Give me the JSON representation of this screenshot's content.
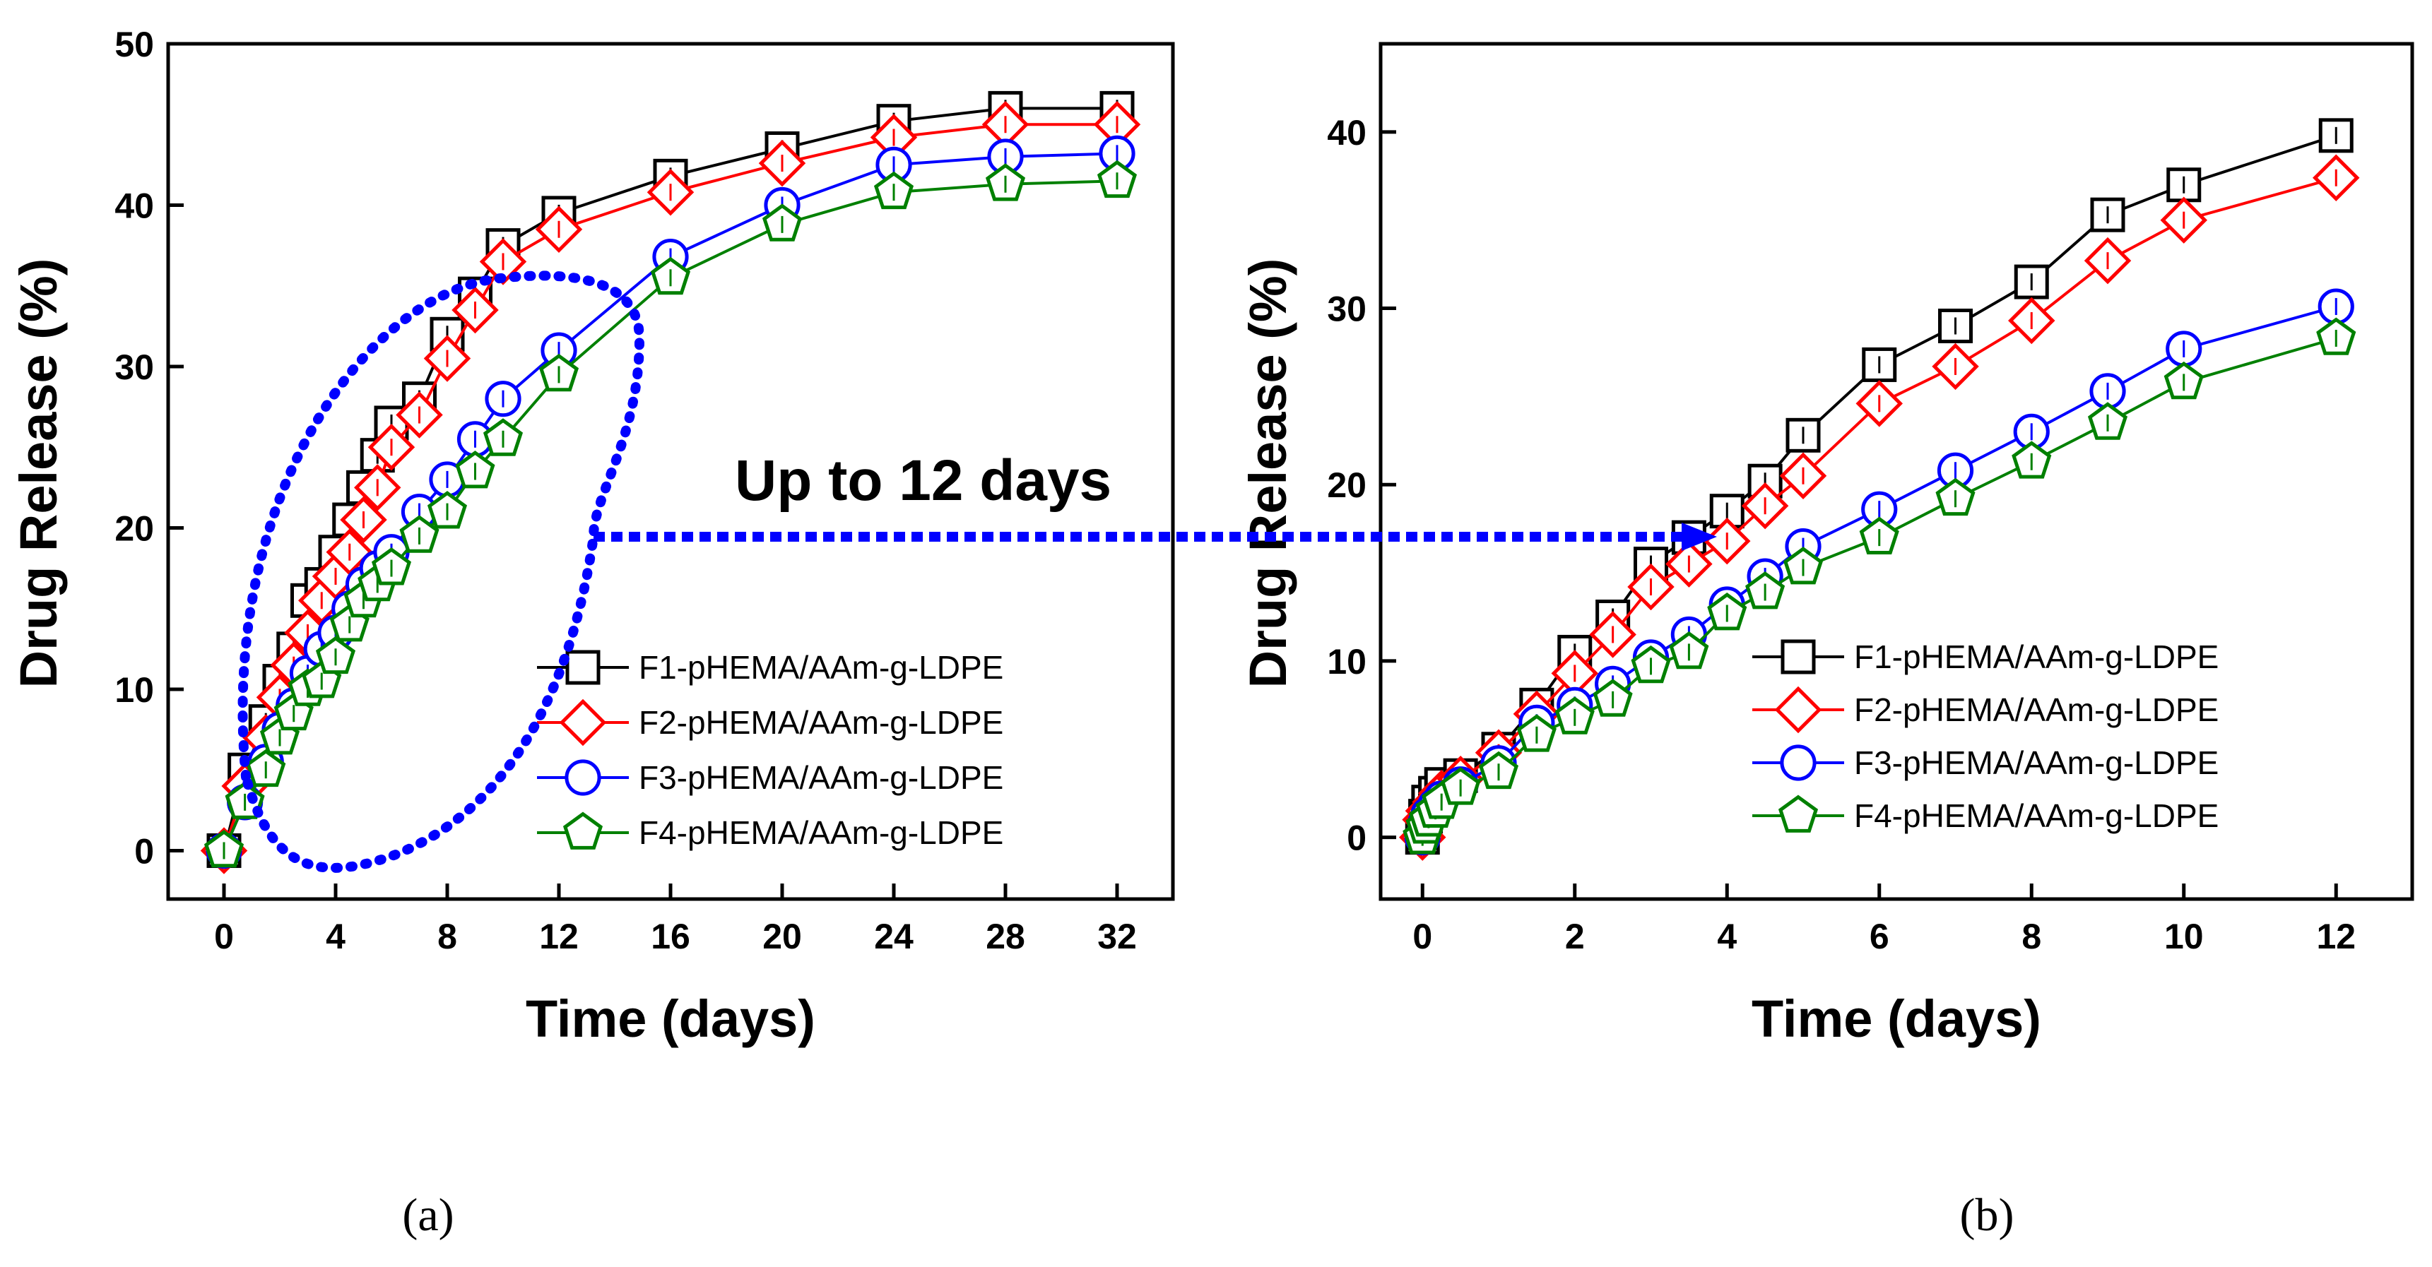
{
  "chart_data": [
    {
      "type": "line",
      "panel_label": "(a)",
      "xlabel": "Time (days)",
      "ylabel": "Drug Release (%)",
      "xlim": [
        -2,
        34
      ],
      "ylim": [
        -3,
        50
      ],
      "xticks": [
        0,
        4,
        8,
        12,
        16,
        20,
        24,
        28,
        32
      ],
      "xtick_labels": [
        "0",
        "4",
        "8",
        "12",
        "16",
        "20",
        "24",
        "28",
        "32"
      ],
      "yticks": [
        0,
        10,
        20,
        30,
        40,
        50
      ],
      "ytick_labels": [
        "0",
        "10",
        "20",
        "30",
        "40",
        "50"
      ],
      "legend_position": "bottom-right",
      "series": [
        {
          "name": "F1-pHEMA/AAm-g-LDPE",
          "color": "#000000",
          "marker": "square",
          "x": [
            0,
            0.75,
            1.5,
            2,
            2.5,
            3,
            3.5,
            4,
            4.5,
            5,
            5.5,
            6,
            7,
            8,
            9,
            10,
            12,
            16,
            20,
            24,
            28,
            32
          ],
          "y": [
            0,
            5,
            8,
            10.5,
            12.5,
            15.5,
            16.5,
            18.5,
            20.5,
            22.5,
            24.5,
            26.5,
            28,
            32,
            34.5,
            37.5,
            39.5,
            41.8,
            43.5,
            45.2,
            46,
            46
          ]
        },
        {
          "name": "F2-pHEMA/AAm-g-LDPE",
          "color": "#ff0000",
          "marker": "diamond",
          "x": [
            0,
            0.75,
            1.5,
            2,
            2.5,
            3,
            3.5,
            4,
            4.5,
            5,
            5.5,
            6,
            7,
            8,
            9,
            10,
            12,
            16,
            20,
            24,
            28,
            32
          ],
          "y": [
            0,
            4,
            7,
            9.5,
            11.5,
            13.5,
            15.5,
            17,
            18.5,
            20.5,
            22.5,
            25,
            27,
            30.5,
            33.5,
            36.5,
            38.5,
            40.8,
            42.6,
            44.2,
            45,
            45
          ]
        },
        {
          "name": "F3-pHEMA/AAm-g-LDPE",
          "color": "#0000ff",
          "marker": "circle",
          "x": [
            0,
            0.75,
            1.5,
            2,
            2.5,
            3,
            3.5,
            4,
            4.5,
            5,
            5.5,
            6,
            7,
            8,
            9,
            10,
            12,
            16,
            20,
            24,
            28,
            32
          ],
          "y": [
            0,
            3,
            5.5,
            7.5,
            9,
            11,
            12.5,
            13.5,
            15,
            16.5,
            17.5,
            18.5,
            21,
            23,
            25.5,
            28,
            31,
            36.8,
            40,
            42.5,
            43,
            43.2
          ]
        },
        {
          "name": "F4-pHEMA/AAm-g-LDPE",
          "color": "#008000",
          "marker": "pentagon",
          "x": [
            0,
            0.75,
            1.5,
            2,
            2.5,
            3,
            3.5,
            4,
            4.5,
            5,
            5.5,
            6,
            7,
            8,
            9,
            10,
            12,
            16,
            20,
            24,
            28,
            32
          ],
          "y": [
            0,
            3,
            5,
            7,
            8.5,
            10,
            10.5,
            12,
            14,
            15.5,
            16.5,
            17.5,
            19.5,
            21,
            23.5,
            25.5,
            29.5,
            35.5,
            38.8,
            40.8,
            41.3,
            41.5
          ]
        }
      ]
    },
    {
      "type": "line",
      "panel_label": "(b)",
      "xlabel": "Time (days)",
      "ylabel": "Drug Release (%)",
      "xlim": [
        -0.55,
        13
      ],
      "ylim": [
        -3.5,
        45
      ],
      "xticks": [
        0,
        2,
        4,
        6,
        8,
        10,
        12
      ],
      "xtick_labels": [
        "0",
        "2",
        "4",
        "6",
        "8",
        "10",
        "12"
      ],
      "yticks": [
        0,
        10,
        20,
        30,
        40
      ],
      "ytick_labels": [
        "0",
        "10",
        "20",
        "30",
        "40"
      ],
      "legend_position": "bottom-right",
      "series": [
        {
          "name": "F1-pHEMA/AAm-g-LDPE",
          "color": "#000000",
          "marker": "square",
          "x": [
            0,
            0.04,
            0.08,
            0.17,
            0.25,
            0.5,
            1,
            1.5,
            2,
            2.5,
            3,
            3.5,
            4,
            4.5,
            5,
            6,
            7,
            8,
            9,
            10,
            12
          ],
          "y": [
            0,
            1.2,
            2,
            2.5,
            3,
            3.5,
            5,
            7.5,
            10.5,
            12.5,
            15.5,
            17,
            18.5,
            20.2,
            22.8,
            26.8,
            29,
            31.5,
            35.3,
            37,
            39.8
          ]
        },
        {
          "name": "F2-pHEMA/AAm-g-LDPE",
          "color": "#ff0000",
          "marker": "diamond",
          "x": [
            0,
            0.04,
            0.08,
            0.17,
            0.25,
            0.5,
            1,
            1.5,
            2,
            2.5,
            3,
            3.5,
            4,
            4.5,
            5,
            6,
            7,
            8,
            9,
            10,
            12
          ],
          "y": [
            0,
            1,
            1.5,
            2,
            2.5,
            3.3,
            4.8,
            7,
            9.3,
            11.5,
            14.2,
            15.5,
            16.8,
            18.8,
            20.5,
            24.6,
            26.7,
            29.3,
            32.7,
            35,
            37.4
          ]
        },
        {
          "name": "F3-pHEMA/AAm-g-LDPE",
          "color": "#0000ff",
          "marker": "circle",
          "x": [
            0,
            0.04,
            0.08,
            0.17,
            0.25,
            0.5,
            1,
            1.5,
            2,
            2.5,
            3,
            3.5,
            4,
            4.5,
            5,
            6,
            7,
            8,
            9,
            10,
            12
          ],
          "y": [
            0,
            0.8,
            1.3,
            1.8,
            2.2,
            3,
            4.2,
            6.5,
            7.5,
            8.7,
            10.2,
            11.5,
            13.2,
            14.8,
            16.5,
            18.6,
            20.8,
            23,
            25.3,
            27.7,
            30.1
          ]
        },
        {
          "name": "F4-pHEMA/AAm-g-LDPE",
          "color": "#008000",
          "marker": "pentagon",
          "x": [
            0,
            0.04,
            0.08,
            0.17,
            0.25,
            0.5,
            1,
            1.5,
            2,
            2.5,
            3,
            3.5,
            4,
            4.5,
            5,
            6,
            7,
            8,
            9,
            10,
            12
          ],
          "y": [
            0,
            0.6,
            1,
            1.5,
            2,
            2.8,
            3.7,
            5.8,
            6.8,
            7.8,
            9.7,
            10.5,
            12.7,
            13.9,
            15.3,
            17,
            19.2,
            21.3,
            23.5,
            25.8,
            28.3
          ]
        }
      ]
    }
  ],
  "annotation": {
    "text": "Up to 12 days",
    "arrow_color": "#0000ff"
  }
}
